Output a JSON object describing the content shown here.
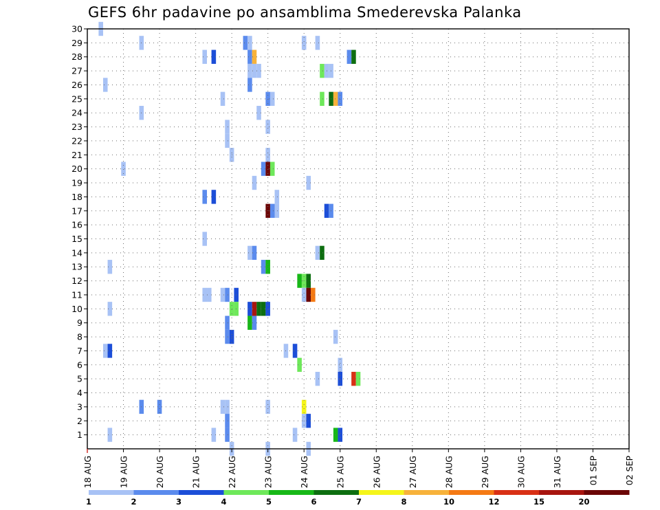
{
  "chart_data": {
    "type": "heatmap",
    "title": "GEFS 6hr padavine po ansamblima Smederevska Palanka",
    "xlabel": "",
    "ylabel": "",
    "x_ticks": [
      "18 AUG",
      "19 AUG",
      "20 AUG",
      "21 AUG",
      "22 AUG",
      "23 AUG",
      "24 AUG",
      "25 AUG",
      "26 AUG",
      "27 AUG",
      "28 AUG",
      "29 AUG",
      "30 AUG",
      "31 AUG",
      "01 SEP",
      "02 SEP"
    ],
    "y_ticks": [
      "1",
      "2",
      "3",
      "4",
      "5",
      "6",
      "7",
      "8",
      "9",
      "10",
      "11",
      "12",
      "13",
      "14",
      "15",
      "16",
      "17",
      "18",
      "19",
      "20",
      "21",
      "22",
      "23",
      "24",
      "25",
      "26",
      "27",
      "28",
      "29",
      "30"
    ],
    "ylim": [
      0,
      30
    ],
    "xlim": [
      0,
      60
    ],
    "grid": true,
    "legend": {
      "placement": "bottom",
      "labels": [
        "1",
        "2",
        "3",
        "4",
        "5",
        "6",
        "7",
        "8",
        "10",
        "12",
        "15",
        "20"
      ],
      "colors": [
        "#a8c2f5",
        "#5b8bed",
        "#1c4ed8",
        "#6ee85a",
        "#17b817",
        "#0d6e10",
        "#f5f51a",
        "#f7b23b",
        "#f57a14",
        "#d93015",
        "#a8150f",
        "#6b0606"
      ]
    },
    "cells": [
      {
        "t": 1.5,
        "m": 30,
        "v": 1
      },
      {
        "t": 6,
        "m": 29,
        "v": 1
      },
      {
        "t": 17.5,
        "m": 29,
        "v": 2
      },
      {
        "t": 18,
        "m": 29,
        "v": 1
      },
      {
        "t": 24,
        "m": 29,
        "v": 1
      },
      {
        "t": 25.5,
        "m": 29,
        "v": 1
      },
      {
        "t": 13,
        "m": 28,
        "v": 1
      },
      {
        "t": 14,
        "m": 28,
        "v": 3
      },
      {
        "t": 18,
        "m": 28,
        "v": 2
      },
      {
        "t": 18.5,
        "m": 28,
        "v": 8
      },
      {
        "t": 29,
        "m": 28,
        "v": 2
      },
      {
        "t": 29.5,
        "m": 28,
        "v": 6
      },
      {
        "t": 18,
        "m": 27,
        "v": 1
      },
      {
        "t": 18.5,
        "m": 27,
        "v": 1
      },
      {
        "t": 19,
        "m": 27,
        "v": 1
      },
      {
        "t": 26,
        "m": 27,
        "v": 4
      },
      {
        "t": 26.5,
        "m": 27,
        "v": 1
      },
      {
        "t": 27,
        "m": 27,
        "v": 1
      },
      {
        "t": 2,
        "m": 26,
        "v": 1
      },
      {
        "t": 18,
        "m": 26,
        "v": 2
      },
      {
        "t": 15,
        "m": 25,
        "v": 1
      },
      {
        "t": 20,
        "m": 25,
        "v": 2
      },
      {
        "t": 20.5,
        "m": 25,
        "v": 1
      },
      {
        "t": 26,
        "m": 25,
        "v": 4
      },
      {
        "t": 27,
        "m": 25,
        "v": 6
      },
      {
        "t": 27.5,
        "m": 25,
        "v": 9
      },
      {
        "t": 28,
        "m": 25,
        "v": 2
      },
      {
        "t": 6,
        "m": 24,
        "v": 1
      },
      {
        "t": 19,
        "m": 24,
        "v": 1
      },
      {
        "t": 15.5,
        "m": 23,
        "v": 1
      },
      {
        "t": 20,
        "m": 23,
        "v": 1
      },
      {
        "t": 15.5,
        "m": 22,
        "v": 1
      },
      {
        "t": 16,
        "m": 21,
        "v": 1
      },
      {
        "t": 20,
        "m": 21,
        "v": 1
      },
      {
        "t": 4,
        "m": 20,
        "v": 1
      },
      {
        "t": 19.5,
        "m": 20,
        "v": 2
      },
      {
        "t": 20,
        "m": 20,
        "v": 20
      },
      {
        "t": 20.5,
        "m": 20,
        "v": 4
      },
      {
        "t": 18.5,
        "m": 19,
        "v": 1
      },
      {
        "t": 24.5,
        "m": 19,
        "v": 1
      },
      {
        "t": 13,
        "m": 18,
        "v": 2
      },
      {
        "t": 14,
        "m": 18,
        "v": 3
      },
      {
        "t": 21,
        "m": 18,
        "v": 1
      },
      {
        "t": 20,
        "m": 17,
        "v": 20
      },
      {
        "t": 20.5,
        "m": 17,
        "v": 2
      },
      {
        "t": 21,
        "m": 17,
        "v": 1
      },
      {
        "t": 26.5,
        "m": 17,
        "v": 3
      },
      {
        "t": 27,
        "m": 17,
        "v": 2
      },
      {
        "t": 13,
        "m": 15,
        "v": 1
      },
      {
        "t": 18,
        "m": 14,
        "v": 1
      },
      {
        "t": 18.5,
        "m": 14,
        "v": 2
      },
      {
        "t": 25.5,
        "m": 14,
        "v": 1
      },
      {
        "t": 26,
        "m": 14,
        "v": 6
      },
      {
        "t": 2.5,
        "m": 13,
        "v": 1
      },
      {
        "t": 19.5,
        "m": 13,
        "v": 2
      },
      {
        "t": 20,
        "m": 13,
        "v": 5
      },
      {
        "t": 23.5,
        "m": 12,
        "v": 5
      },
      {
        "t": 24,
        "m": 12,
        "v": 4
      },
      {
        "t": 24.5,
        "m": 12,
        "v": 6
      },
      {
        "t": 13,
        "m": 11,
        "v": 1
      },
      {
        "t": 13.5,
        "m": 11,
        "v": 1
      },
      {
        "t": 15,
        "m": 11,
        "v": 1
      },
      {
        "t": 15.5,
        "m": 11,
        "v": 2
      },
      {
        "t": 16.5,
        "m": 11,
        "v": 3
      },
      {
        "t": 24,
        "m": 11,
        "v": 1
      },
      {
        "t": 24.5,
        "m": 11,
        "v": 20
      },
      {
        "t": 25,
        "m": 11,
        "v": 10
      },
      {
        "t": 2.5,
        "m": 10,
        "v": 1
      },
      {
        "t": 16,
        "m": 10,
        "v": 4
      },
      {
        "t": 16.5,
        "m": 10,
        "v": 4
      },
      {
        "t": 18,
        "m": 10,
        "v": 3
      },
      {
        "t": 18.5,
        "m": 10,
        "v": 15
      },
      {
        "t": 19,
        "m": 10,
        "v": 6
      },
      {
        "t": 19.5,
        "m": 10,
        "v": 6
      },
      {
        "t": 20,
        "m": 10,
        "v": 3
      },
      {
        "t": 15.5,
        "m": 9,
        "v": 2
      },
      {
        "t": 18,
        "m": 9,
        "v": 5
      },
      {
        "t": 18.5,
        "m": 9,
        "v": 2
      },
      {
        "t": 15.5,
        "m": 8,
        "v": 2
      },
      {
        "t": 16,
        "m": 8,
        "v": 3
      },
      {
        "t": 27.5,
        "m": 8,
        "v": 1
      },
      {
        "t": 2,
        "m": 7,
        "v": 1
      },
      {
        "t": 2.5,
        "m": 7,
        "v": 3
      },
      {
        "t": 22,
        "m": 7,
        "v": 1
      },
      {
        "t": 23,
        "m": 7,
        "v": 3
      },
      {
        "t": 23.5,
        "m": 6,
        "v": 4
      },
      {
        "t": 28,
        "m": 6,
        "v": 1
      },
      {
        "t": 25.5,
        "m": 5,
        "v": 1
      },
      {
        "t": 28,
        "m": 5,
        "v": 3
      },
      {
        "t": 29.5,
        "m": 5,
        "v": 12
      },
      {
        "t": 30,
        "m": 5,
        "v": 4
      },
      {
        "t": 6,
        "m": 3,
        "v": 2
      },
      {
        "t": 8,
        "m": 3,
        "v": 2
      },
      {
        "t": 15,
        "m": 3,
        "v": 1
      },
      {
        "t": 15.5,
        "m": 3,
        "v": 1
      },
      {
        "t": 20,
        "m": 3,
        "v": 1
      },
      {
        "t": 24,
        "m": 3,
        "v": 7
      },
      {
        "t": 15.5,
        "m": 2,
        "v": 2
      },
      {
        "t": 24,
        "m": 2,
        "v": 1
      },
      {
        "t": 24.5,
        "m": 2,
        "v": 3
      },
      {
        "t": 2.5,
        "m": 1,
        "v": 1
      },
      {
        "t": 14,
        "m": 1,
        "v": 1
      },
      {
        "t": 15.5,
        "m": 1,
        "v": 2
      },
      {
        "t": 23,
        "m": 1,
        "v": 1
      },
      {
        "t": 27.5,
        "m": 1,
        "v": 5
      },
      {
        "t": 28,
        "m": 1,
        "v": 3
      },
      {
        "t": 16,
        "m": 0,
        "v": 1
      },
      {
        "t": 20,
        "m": 0,
        "v": 1
      },
      {
        "t": 24.5,
        "m": 0,
        "v": 1
      }
    ]
  }
}
